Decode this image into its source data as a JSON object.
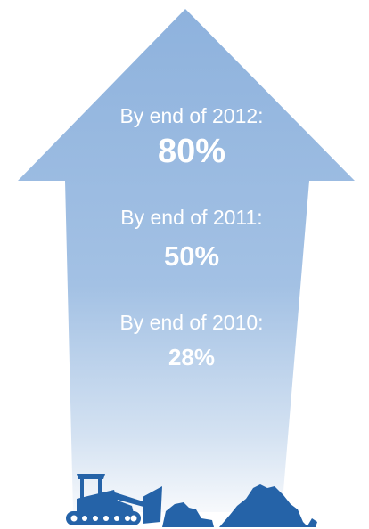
{
  "colors": {
    "arrow_top": "#8eb2dd",
    "arrow_bottom": "#f2f6fb",
    "machinery": "#2563a8",
    "text": "#ffffff"
  },
  "icons": [
    "bulldozer-icon",
    "rubble-icon"
  ],
  "milestones": [
    {
      "label": "By end of 2012:",
      "value": "80%"
    },
    {
      "label": "By end of 2011:",
      "value": "50%"
    },
    {
      "label": "By end of 2010:",
      "value": "28%"
    }
  ]
}
